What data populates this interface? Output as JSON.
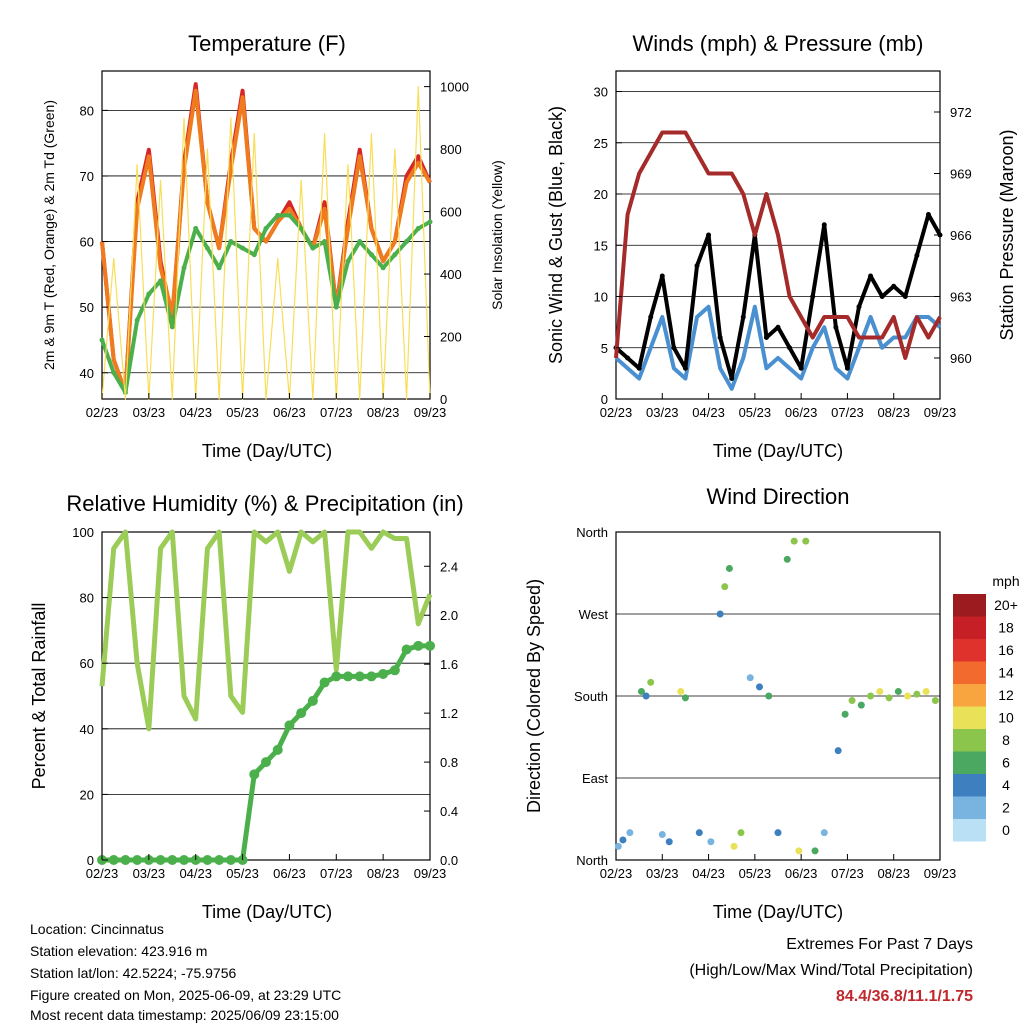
{
  "panels": {
    "temperature": {
      "title": "Temperature (F)",
      "ylabel": "2m & 9m T (Red, Orange) & 2m Td (Green)",
      "ylabel_right": "Solar Insolation (Yellow)",
      "xlabel": "Time (Day/UTC)"
    },
    "winds": {
      "title": "Winds (mph) & Pressure (mb)",
      "ylabel": "Sonic Wind & Gust (Blue, Black)",
      "ylabel_right": "Station Pressure (Maroon)",
      "xlabel": "Time (Day/UTC)"
    },
    "humidity": {
      "title": "Relative Humidity (%) & Precipitation (in)",
      "ylabel": "Percent & Total Rainfall",
      "xlabel": "Time (Day/UTC)"
    },
    "direction": {
      "title": "Wind Direction",
      "ylabel": "Direction (Colored By Speed)",
      "xlabel": "Time (Day/UTC)",
      "legend_unit": "mph"
    }
  },
  "x_ticks": [
    "02/23",
    "03/23",
    "04/23",
    "05/23",
    "06/23",
    "07/23",
    "08/23",
    "09/23"
  ],
  "info": {
    "location": "Location: Cincinnatus",
    "elevation": "Station elevation: 423.916 m",
    "latlon": "Station lat/lon: 42.5224; -75.9756",
    "created": "Figure created on Mon, 2025-06-09, at 23:29 UTC",
    "recent": "Most recent data timestamp: 2025/06/09 23:15:00"
  },
  "extremes": {
    "line1": "Extremes For Past 7 Days",
    "line2": "(High/Low/Max Wind/Total Precipitation)",
    "values": "84.4/36.8/11.1/1.75"
  },
  "chart_data": [
    {
      "id": "temperature",
      "type": "line",
      "title": "Temperature (F)",
      "xlabel": "Time (Day/UTC)",
      "ylabel": "2m & 9m T (Red, Orange) & 2m Td (Green)",
      "ylabel_right": "Solar Insolation (Yellow)",
      "x": [
        0,
        0.25,
        0.5,
        0.75,
        1,
        1.25,
        1.5,
        1.75,
        2,
        2.25,
        2.5,
        2.75,
        3,
        3.25,
        3.5,
        3.75,
        4,
        4.25,
        4.5,
        4.75,
        5,
        5.25,
        5.5,
        5.75,
        6,
        6.25,
        6.5,
        6.75,
        7
      ],
      "x_tick_labels": [
        "02/23",
        "03/23",
        "04/23",
        "05/23",
        "06/23",
        "07/23",
        "08/23",
        "09/23"
      ],
      "ylim": [
        36,
        86
      ],
      "yticks": [
        40,
        50,
        60,
        70,
        80
      ],
      "y2lim": [
        0,
        1050
      ],
      "y2ticks": [
        0,
        200,
        400,
        600,
        800,
        1000
      ],
      "series": [
        {
          "name": "2m T",
          "color": "#d62728",
          "axis": "left",
          "values": [
            60,
            42,
            37,
            66,
            74,
            57,
            48,
            72,
            84,
            66,
            59,
            72,
            83,
            62,
            60,
            63,
            66,
            62,
            59,
            66,
            50,
            63,
            74,
            62,
            57,
            60,
            70,
            73,
            69
          ]
        },
        {
          "name": "9m T",
          "color": "#f07a1e",
          "axis": "left",
          "values": [
            60,
            42,
            37,
            65,
            73,
            56,
            49,
            71,
            83,
            66,
            59,
            71,
            82,
            62,
            60,
            63,
            65,
            62,
            59,
            65,
            50,
            62,
            73,
            62,
            57,
            60,
            69,
            72,
            69
          ]
        },
        {
          "name": "2m Td",
          "color": "#4bb04b",
          "axis": "left",
          "values": [
            45,
            40,
            37,
            48,
            52,
            54,
            47,
            56,
            62,
            59,
            56,
            60,
            59,
            58,
            62,
            64,
            64,
            62,
            59,
            60,
            50,
            57,
            60,
            58,
            56,
            58,
            60,
            62,
            63
          ]
        },
        {
          "name": "Solar Insolation",
          "color": "#f8de58",
          "axis": "right",
          "values": [
            0,
            450,
            0,
            750,
            0,
            700,
            0,
            900,
            0,
            800,
            0,
            900,
            0,
            850,
            0,
            450,
            0,
            700,
            0,
            850,
            0,
            750,
            0,
            850,
            0,
            800,
            0,
            1000,
            0
          ]
        }
      ]
    },
    {
      "id": "winds",
      "type": "line",
      "title": "Winds (mph) & Pressure (mb)",
      "xlabel": "Time (Day/UTC)",
      "ylabel": "Sonic Wind & Gust (Blue, Black)",
      "ylabel_right": "Station Pressure (Maroon)",
      "x": [
        0,
        0.25,
        0.5,
        0.75,
        1,
        1.25,
        1.5,
        1.75,
        2,
        2.25,
        2.5,
        2.75,
        3,
        3.25,
        3.5,
        3.75,
        4,
        4.25,
        4.5,
        4.75,
        5,
        5.25,
        5.5,
        5.75,
        6,
        6.25,
        6.5,
        6.75,
        7
      ],
      "x_tick_labels": [
        "02/23",
        "03/23",
        "04/23",
        "05/23",
        "06/23",
        "07/23",
        "08/23",
        "09/23"
      ],
      "ylim": [
        0,
        32
      ],
      "yticks": [
        0,
        5,
        10,
        15,
        20,
        25,
        30
      ],
      "y2lim": [
        958,
        974
      ],
      "y2ticks": [
        960,
        963,
        966,
        969,
        972
      ],
      "series": [
        {
          "name": "Sonic Wind",
          "color": "#4a90d0",
          "axis": "left",
          "values": [
            4,
            3,
            2,
            5,
            8,
            3,
            2,
            8,
            9,
            3,
            1,
            4,
            9,
            3,
            4,
            3,
            2,
            5,
            7,
            3,
            2,
            5,
            8,
            5,
            6,
            6,
            8,
            8,
            7
          ]
        },
        {
          "name": "Gust",
          "color": "#000000",
          "axis": "left",
          "values": [
            5,
            4,
            3,
            8,
            12,
            5,
            3,
            13,
            16,
            6,
            2,
            8,
            16,
            6,
            7,
            5,
            3,
            10,
            17,
            7,
            3,
            9,
            12,
            10,
            11,
            10,
            14,
            18,
            16
          ]
        },
        {
          "name": "Station Pressure",
          "color": "#a52a2a",
          "axis": "right",
          "values": [
            960,
            967,
            969,
            970,
            971,
            971,
            971,
            970,
            969,
            969,
            969,
            968,
            966,
            968,
            966,
            963,
            962,
            961,
            962,
            962,
            962,
            961,
            961,
            961,
            962,
            960,
            962,
            961,
            962
          ]
        }
      ]
    },
    {
      "id": "humidity",
      "type": "line",
      "title": "Relative Humidity (%) & Precipitation (in)",
      "xlabel": "Time (Day/UTC)",
      "ylabel": "Percent & Total Rainfall",
      "x": [
        0,
        0.25,
        0.5,
        0.75,
        1,
        1.25,
        1.5,
        1.75,
        2,
        2.25,
        2.5,
        2.75,
        3,
        3.25,
        3.5,
        3.75,
        4,
        4.25,
        4.5,
        4.75,
        5,
        5.25,
        5.5,
        5.75,
        6,
        6.25,
        6.5,
        6.75,
        7
      ],
      "x_tick_labels": [
        "02/23",
        "03/23",
        "04/23",
        "05/23",
        "06/23",
        "07/23",
        "08/23",
        "09/23"
      ],
      "ylim": [
        0,
        100
      ],
      "yticks": [
        0,
        20,
        40,
        60,
        80,
        100
      ],
      "y2lim": [
        0,
        2.68
      ],
      "y2ticks": [
        0.0,
        0.4,
        0.8,
        1.2,
        1.6,
        2.0,
        2.4
      ],
      "series": [
        {
          "name": "Relative Humidity",
          "color": "#9ccc58",
          "axis": "left",
          "values": [
            53,
            95,
            100,
            60,
            40,
            95,
            100,
            50,
            43,
            95,
            100,
            50,
            45,
            100,
            97,
            100,
            88,
            100,
            97,
            100,
            58,
            100,
            100,
            95,
            100,
            98,
            98,
            72,
            81
          ]
        },
        {
          "name": "Total Precipitation",
          "color": "#4bb04b",
          "axis": "right",
          "values": [
            0,
            0,
            0,
            0,
            0,
            0,
            0,
            0,
            0,
            0,
            0,
            0,
            0,
            0.7,
            0.8,
            0.9,
            1.1,
            1.2,
            1.3,
            1.45,
            1.5,
            1.5,
            1.5,
            1.5,
            1.52,
            1.55,
            1.72,
            1.75,
            1.75
          ]
        }
      ]
    },
    {
      "id": "direction",
      "type": "scatter",
      "title": "Wind Direction",
      "xlabel": "Time (Day/UTC)",
      "ylabel": "Direction (Colored By Speed)",
      "x_tick_labels": [
        "02/23",
        "03/23",
        "04/23",
        "05/23",
        "06/23",
        "07/23",
        "08/23",
        "09/23"
      ],
      "y_tick_labels": [
        "North",
        "East",
        "South",
        "West",
        "North"
      ],
      "ylim": [
        0,
        360
      ],
      "colorbar": {
        "unit": "mph",
        "labels": [
          "20+",
          "18",
          "16",
          "14",
          "12",
          "10",
          "8",
          "6",
          "4",
          "2",
          "0"
        ],
        "colors": [
          "#9b1b1f",
          "#c62026",
          "#e0322c",
          "#f26a2d",
          "#f8a540",
          "#e9e157",
          "#8cc54c",
          "#4aa860",
          "#3e7fbf",
          "#79b4e0",
          "#b9e0f5"
        ]
      },
      "points": [
        {
          "x": 0.05,
          "y": 15,
          "speed": 2
        },
        {
          "x": 0.15,
          "y": 22,
          "speed": 4
        },
        {
          "x": 0.3,
          "y": 30,
          "speed": 2
        },
        {
          "x": 0.55,
          "y": 185,
          "speed": 6
        },
        {
          "x": 0.65,
          "y": 180,
          "speed": 4
        },
        {
          "x": 0.75,
          "y": 195,
          "speed": 8
        },
        {
          "x": 1.0,
          "y": 28,
          "speed": 2
        },
        {
          "x": 1.15,
          "y": 20,
          "speed": 4
        },
        {
          "x": 1.4,
          "y": 185,
          "speed": 10
        },
        {
          "x": 1.5,
          "y": 178,
          "speed": 6
        },
        {
          "x": 1.8,
          "y": 30,
          "speed": 4
        },
        {
          "x": 2.05,
          "y": 20,
          "speed": 2
        },
        {
          "x": 2.25,
          "y": 270,
          "speed": 4
        },
        {
          "x": 2.35,
          "y": 300,
          "speed": 8
        },
        {
          "x": 2.45,
          "y": 320,
          "speed": 6
        },
        {
          "x": 2.55,
          "y": 15,
          "speed": 10
        },
        {
          "x": 2.7,
          "y": 30,
          "speed": 8
        },
        {
          "x": 2.9,
          "y": 200,
          "speed": 2
        },
        {
          "x": 3.1,
          "y": 190,
          "speed": 4
        },
        {
          "x": 3.3,
          "y": 180,
          "speed": 6
        },
        {
          "x": 3.5,
          "y": 30,
          "speed": 4
        },
        {
          "x": 3.7,
          "y": 330,
          "speed": 6
        },
        {
          "x": 3.85,
          "y": 350,
          "speed": 8
        },
        {
          "x": 3.95,
          "y": 10,
          "speed": 10
        },
        {
          "x": 4.1,
          "y": 350,
          "speed": 8
        },
        {
          "x": 4.3,
          "y": 10,
          "speed": 6
        },
        {
          "x": 4.5,
          "y": 30,
          "speed": 2
        },
        {
          "x": 4.8,
          "y": 120,
          "speed": 4
        },
        {
          "x": 4.95,
          "y": 160,
          "speed": 6
        },
        {
          "x": 5.1,
          "y": 175,
          "speed": 8
        },
        {
          "x": 5.3,
          "y": 170,
          "speed": 6
        },
        {
          "x": 5.5,
          "y": 180,
          "speed": 8
        },
        {
          "x": 5.7,
          "y": 185,
          "speed": 10
        },
        {
          "x": 5.9,
          "y": 178,
          "speed": 8
        },
        {
          "x": 6.1,
          "y": 185,
          "speed": 6
        },
        {
          "x": 6.3,
          "y": 180,
          "speed": 10
        },
        {
          "x": 6.5,
          "y": 182,
          "speed": 8
        },
        {
          "x": 6.7,
          "y": 185,
          "speed": 10
        },
        {
          "x": 6.9,
          "y": 175,
          "speed": 8
        }
      ]
    }
  ]
}
